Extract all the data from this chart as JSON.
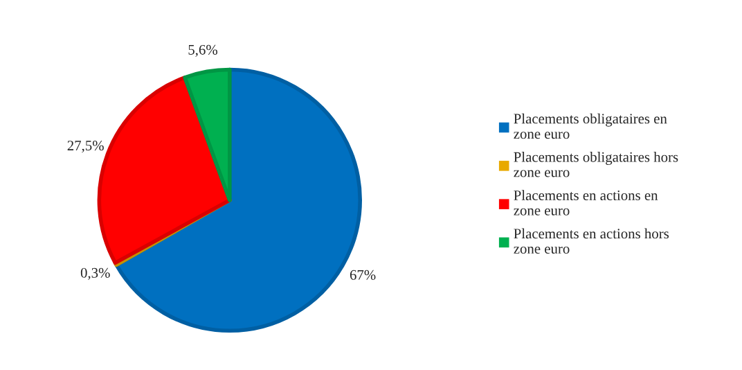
{
  "chart_data": {
    "type": "pie",
    "categories": [
      "Placements obligataires en zone euro",
      "Placements obligataires hors zone euro",
      "Placements en actions en zone euro",
      "Placements en actions hors zone euro"
    ],
    "values": [
      67,
      0.3,
      27.5,
      5.6
    ],
    "colors": [
      "#0070c0",
      "#e8a900",
      "#ff0000",
      "#00b050"
    ],
    "value_labels": [
      "67%",
      "0,3%",
      "27,5%",
      "5,6%"
    ],
    "legend": "right"
  }
}
